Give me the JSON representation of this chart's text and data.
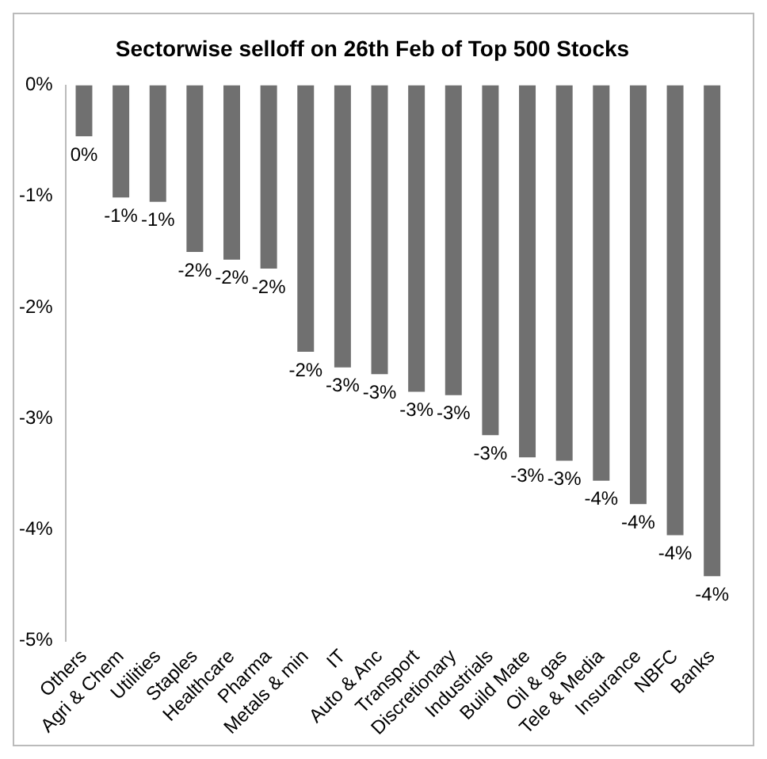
{
  "chart_data": {
    "type": "bar",
    "title": "Sectorwise selloff on 26th Feb of Top 500 Stocks",
    "categories": [
      "Others",
      "Agri & Chem",
      "Utilities",
      "Staples",
      "Healthcare",
      "Pharma",
      "Metals & min",
      "IT",
      "Auto & Anc",
      "Transport",
      "Discretionary",
      "Industrials",
      "Build Mate",
      "Oil & gas",
      "Tele & Media",
      "Insurance",
      "NBFC",
      "Banks"
    ],
    "values": [
      -0.46,
      -1.01,
      -1.05,
      -1.5,
      -1.57,
      -1.65,
      -2.4,
      -2.54,
      -2.6,
      -2.76,
      -2.79,
      -3.15,
      -3.35,
      -3.38,
      -3.56,
      -3.77,
      -4.05,
      -4.42
    ],
    "value_labels": [
      "0%",
      "-1%",
      "-1%",
      "-2%",
      "-2%",
      "-2%",
      "-2%",
      "-3%",
      "-3%",
      "-3%",
      "-3%",
      "-3%",
      "-3%",
      "-3%",
      "-4%",
      "-4%",
      "-4%",
      "-4%"
    ],
    "color": "#707070",
    "ylim": [
      -5,
      0
    ],
    "yticks": [
      {
        "value": 0,
        "label": "0%"
      },
      {
        "value": -1,
        "label": "-1%"
      },
      {
        "value": -2,
        "label": "-2%"
      },
      {
        "value": -3,
        "label": "-3%"
      },
      {
        "value": -4,
        "label": "-4%"
      },
      {
        "value": -5,
        "label": "-5%"
      }
    ],
    "grid": false,
    "legend": false
  }
}
